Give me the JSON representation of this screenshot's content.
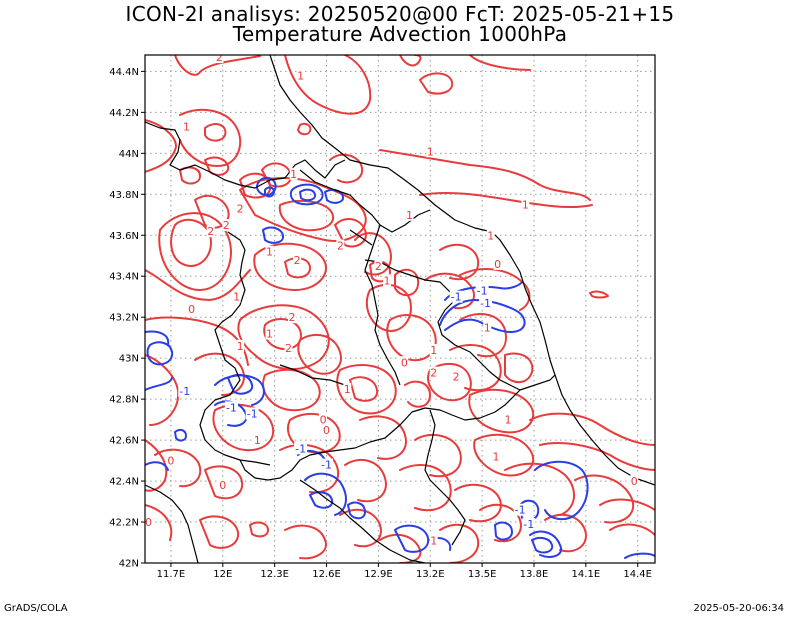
{
  "title_line1": "ICON-2I analisys: 20250520@00 FcT: 2025-05-21+15",
  "title_line2": "Temperature Advection 1000hPa",
  "footer_left": "GrADS/COLA",
  "footer_right": "2025-05-20-06:34",
  "chart_data": {
    "type": "contour",
    "x_ticks": [
      "11.7E",
      "12E",
      "12.3E",
      "12.6E",
      "12.9E",
      "13.2E",
      "13.5E",
      "13.8E",
      "14.1E",
      "14.4E"
    ],
    "y_ticks": [
      "42N",
      "42.2N",
      "42.4N",
      "42.6N",
      "42.8N",
      "43N",
      "43.2N",
      "43.4N",
      "43.6N",
      "43.8N",
      "44N",
      "44.2N",
      "44.4N"
    ],
    "xlim": [
      11.55,
      14.5
    ],
    "ylim": [
      42.0,
      44.48
    ],
    "grid": true,
    "colors": {
      "positive": "#e83c3c",
      "negative": "#2a3ee6",
      "coast": "#000000",
      "grid": "#9a9a9a"
    },
    "contour_labels": [
      {
        "text": "2",
        "lon": 11.98,
        "lat": 44.47,
        "sign": "pos"
      },
      {
        "text": "1",
        "lon": 12.45,
        "lat": 44.38,
        "sign": "pos"
      },
      {
        "text": "1",
        "lon": 11.79,
        "lat": 44.13,
        "sign": "pos"
      },
      {
        "text": "1",
        "lon": 12.41,
        "lat": 43.9,
        "sign": "pos"
      },
      {
        "text": "1",
        "lon": 13.2,
        "lat": 44.01,
        "sign": "pos"
      },
      {
        "text": "1",
        "lon": 13.75,
        "lat": 43.75,
        "sign": "pos"
      },
      {
        "text": "2",
        "lon": 11.93,
        "lat": 43.62,
        "sign": "pos"
      },
      {
        "text": "2",
        "lon": 12.02,
        "lat": 43.65,
        "sign": "pos"
      },
      {
        "text": "2",
        "lon": 12.1,
        "lat": 43.73,
        "sign": "pos"
      },
      {
        "text": "1",
        "lon": 12.27,
        "lat": 43.52,
        "sign": "pos"
      },
      {
        "text": "2",
        "lon": 12.43,
        "lat": 43.48,
        "sign": "pos"
      },
      {
        "text": "2",
        "lon": 12.68,
        "lat": 43.55,
        "sign": "pos"
      },
      {
        "text": "2",
        "lon": 12.9,
        "lat": 43.45,
        "sign": "pos"
      },
      {
        "text": "1",
        "lon": 13.08,
        "lat": 43.7,
        "sign": "pos"
      },
      {
        "text": "1",
        "lon": 13.55,
        "lat": 43.6,
        "sign": "pos"
      },
      {
        "text": "0",
        "lon": 13.59,
        "lat": 43.46,
        "sign": "pos"
      },
      {
        "text": "1",
        "lon": 12.95,
        "lat": 43.38,
        "sign": "pos"
      },
      {
        "text": "1",
        "lon": 12.08,
        "lat": 43.3,
        "sign": "pos"
      },
      {
        "text": "0",
        "lon": 11.82,
        "lat": 43.24,
        "sign": "pos"
      },
      {
        "text": "2",
        "lon": 12.4,
        "lat": 43.2,
        "sign": "pos"
      },
      {
        "text": "1",
        "lon": 12.27,
        "lat": 43.12,
        "sign": "pos"
      },
      {
        "text": "2",
        "lon": 12.38,
        "lat": 43.05,
        "sign": "pos"
      },
      {
        "text": "1",
        "lon": 12.1,
        "lat": 43.06,
        "sign": "pos"
      },
      {
        "text": "1",
        "lon": 13.22,
        "lat": 43.04,
        "sign": "pos"
      },
      {
        "text": "1",
        "lon": 13.53,
        "lat": 43.15,
        "sign": "pos"
      },
      {
        "text": "-1",
        "lon": 13.35,
        "lat": 43.3,
        "sign": "neg"
      },
      {
        "text": "-1",
        "lon": 13.5,
        "lat": 43.33,
        "sign": "neg"
      },
      {
        "text": "-1",
        "lon": 13.52,
        "lat": 43.27,
        "sign": "neg"
      },
      {
        "text": "0",
        "lon": 13.05,
        "lat": 42.98,
        "sign": "pos"
      },
      {
        "text": "2",
        "lon": 13.35,
        "lat": 42.91,
        "sign": "pos"
      },
      {
        "text": "2",
        "lon": 13.22,
        "lat": 42.93,
        "sign": "pos"
      },
      {
        "text": "-1",
        "lon": 11.78,
        "lat": 42.84,
        "sign": "neg"
      },
      {
        "text": "-1",
        "lon": 12.05,
        "lat": 42.76,
        "sign": "neg"
      },
      {
        "text": "-1",
        "lon": 12.17,
        "lat": 42.73,
        "sign": "neg"
      },
      {
        "text": "0",
        "lon": 12.6,
        "lat": 42.65,
        "sign": "pos"
      },
      {
        "text": "1",
        "lon": 12.2,
        "lat": 42.6,
        "sign": "pos"
      },
      {
        "text": "1",
        "lon": 12.72,
        "lat": 42.85,
        "sign": "pos"
      },
      {
        "text": "1",
        "lon": 13.65,
        "lat": 42.7,
        "sign": "pos"
      },
      {
        "text": "-1",
        "lon": 12.45,
        "lat": 42.56,
        "sign": "neg"
      },
      {
        "text": "-1",
        "lon": 12.6,
        "lat": 42.48,
        "sign": "neg"
      },
      {
        "text": "0",
        "lon": 11.7,
        "lat": 42.5,
        "sign": "pos"
      },
      {
        "text": "0",
        "lon": 12.0,
        "lat": 42.38,
        "sign": "pos"
      },
      {
        "text": "0",
        "lon": 12.58,
        "lat": 42.7,
        "sign": "pos"
      },
      {
        "text": "1",
        "lon": 13.58,
        "lat": 42.52,
        "sign": "pos"
      },
      {
        "text": "0",
        "lon": 14.38,
        "lat": 42.4,
        "sign": "pos"
      },
      {
        "text": "0",
        "lon": 11.57,
        "lat": 42.2,
        "sign": "pos"
      },
      {
        "text": "-1",
        "lon": 13.72,
        "lat": 42.26,
        "sign": "neg"
      },
      {
        "text": "-1",
        "lon": 13.77,
        "lat": 42.19,
        "sign": "neg"
      },
      {
        "text": "1",
        "lon": 13.22,
        "lat": 42.11,
        "sign": "pos"
      }
    ]
  }
}
